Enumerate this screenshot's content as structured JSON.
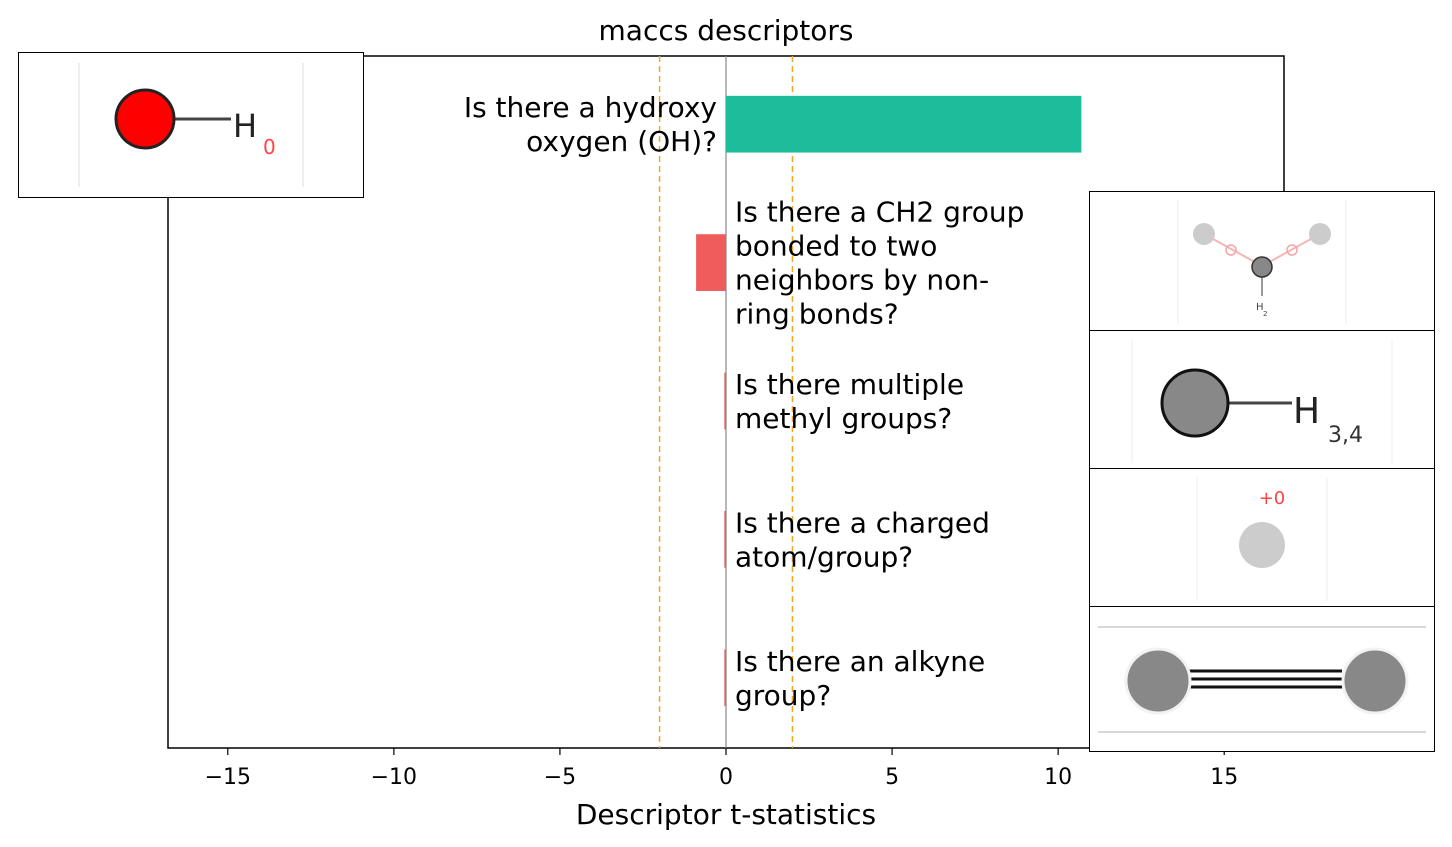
{
  "chart_data": {
    "type": "bar",
    "orientation": "horizontal",
    "title": "maccs descriptors",
    "xlabel": "Descriptor t-statistics",
    "ylabel": "",
    "xlim": [
      -16.8,
      16.8
    ],
    "xticks": [
      -15,
      -10,
      -5,
      0,
      5,
      10,
      15
    ],
    "xtick_labels": [
      "−15",
      "−10",
      "−5",
      "0",
      "5",
      "10",
      "15"
    ],
    "threshold_lines": [
      -2,
      2
    ],
    "grid": false,
    "categories": [
      "Is there a hydroxy oxygen (OH)?",
      "Is there a CH2 group bonded to two neighbors by non-ring bonds?",
      "Is there multiple methyl groups?",
      "Is there a charged atom/group?",
      "Is there an alkyne group?"
    ],
    "category_lines": [
      [
        "Is there a hydroxy",
        "oxygen (OH)?"
      ],
      [
        "Is there a CH2 group",
        "bonded to two",
        "neighbors by non-",
        "ring bonds?"
      ],
      [
        "Is there multiple",
        "methyl groups?"
      ],
      [
        "Is there a charged",
        "atom/group?"
      ],
      [
        "Is there an alkyne",
        "group?"
      ]
    ],
    "values": [
      10.7,
      -0.9,
      -0.05,
      -0.05,
      -0.05
    ],
    "colors": {
      "positive": "#1dbd9c",
      "negative": "#f05c5c",
      "threshold": "#f5a623",
      "zero_line": "#888888"
    }
  },
  "molecules": [
    {
      "name": "hydroxy",
      "labels": [
        "H",
        "0"
      ]
    },
    {
      "name": "ch2",
      "labels": [
        "H",
        "2"
      ]
    },
    {
      "name": "methyl",
      "labels": [
        "H",
        "3,4"
      ]
    },
    {
      "name": "charged",
      "labels": [
        "+0"
      ]
    },
    {
      "name": "alkyne",
      "labels": []
    }
  ]
}
